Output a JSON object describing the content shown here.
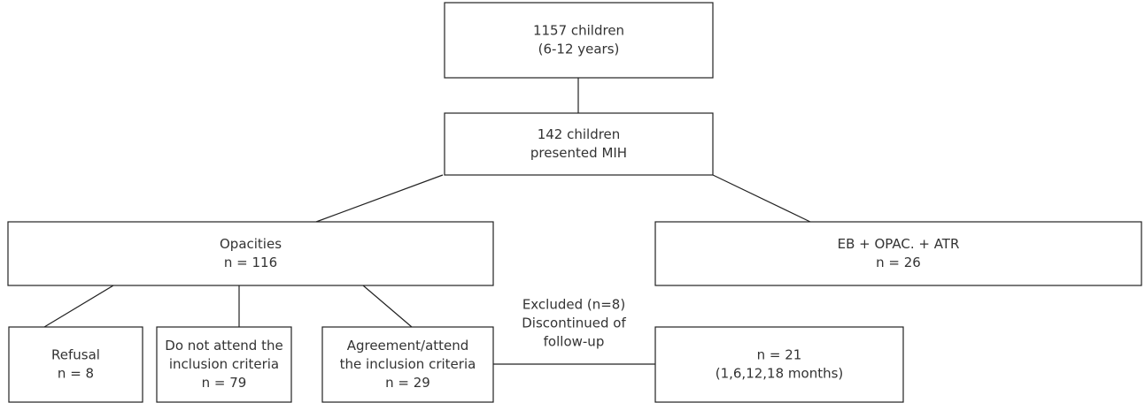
{
  "nodes": [
    {
      "lines": [
        "1157 children",
        "(6-12 years)"
      ]
    },
    {
      "lines": [
        "142 children",
        "presented MIH"
      ]
    },
    {
      "lines": [
        "Opacities",
        "n = 116"
      ]
    },
    {
      "lines": [
        "EB + OPAC. + ATR",
        "n = 26"
      ]
    },
    {
      "lines": [
        "Refusal",
        "n = 8"
      ]
    },
    {
      "lines": [
        "Do not attend the",
        "inclusion criteria",
        "n = 79"
      ]
    },
    {
      "lines": [
        "Agreement/attend",
        "the inclusion criteria",
        "n = 29"
      ]
    },
    {
      "lines": [
        "n = 21",
        "(1,6,12,18 months)"
      ]
    }
  ],
  "edge_label": {
    "lines": [
      "Excluded (n=8)",
      "Discontinued of",
      "follow-up"
    ]
  }
}
